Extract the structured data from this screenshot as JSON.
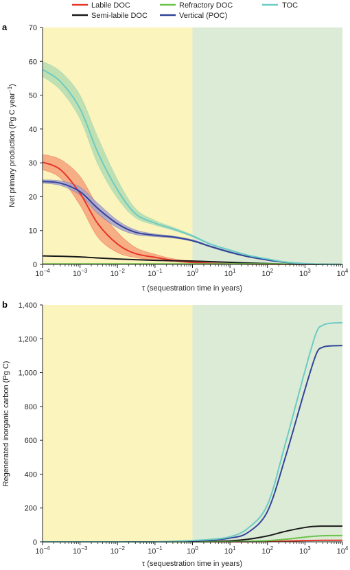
{
  "legend": {
    "items": [
      {
        "label": "Labile DOC",
        "color": "#e8352a"
      },
      {
        "label": "Semi-labile DOC",
        "color": "#1a1a1a"
      },
      {
        "label": "Refractory DOC",
        "color": "#6cc24a"
      },
      {
        "label": "Vertical (POC)",
        "color": "#33449a"
      },
      {
        "label": "TOC",
        "color": "#6ccbc4"
      }
    ]
  },
  "colors": {
    "short_region": "#fbf4bd",
    "long_region": "#dcebd6",
    "labile_band": "#f5a27a",
    "vertical_band": "#a9a3cf",
    "toc_band": "#b5dcb0"
  },
  "chart_data": [
    {
      "panel_label": "a",
      "type": "line",
      "xscale": "log",
      "xlim": [
        0.0001,
        10000
      ],
      "ylim": [
        0,
        70
      ],
      "yticks": [
        "0",
        "10",
        "20",
        "30",
        "40",
        "50",
        "60",
        "70"
      ],
      "xticks": [
        "10",
        "10",
        "10",
        "10",
        "10",
        "10",
        "10",
        "10",
        "10"
      ],
      "xtick_exponents": [
        "−4",
        "−3",
        "−2",
        "−1",
        "0",
        "1",
        "2",
        "3",
        "4"
      ],
      "xlabel": "τ (sequestration time in years)",
      "ylabel": "Net primary production (Pg C year−1)",
      "ylabel_main": "Net primary production (Pg C year",
      "ylabel_sup": "−1",
      "ylabel_end": ")",
      "grid": false,
      "shaded_regions": [
        {
          "x": [
            0.0001,
            1
          ],
          "color": "short_region"
        },
        {
          "x": [
            1,
            10000
          ],
          "color": "long_region"
        }
      ],
      "x": [
        0.0001,
        0.0003,
        0.001,
        0.003,
        0.01,
        0.03,
        0.1,
        0.3,
        1,
        3,
        10,
        30,
        100,
        300,
        1000,
        3000,
        10000
      ],
      "series": [
        {
          "name": "Labile DOC",
          "color": "#e8352a",
          "band": "labile_band",
          "values": [
            30.2,
            28,
            21,
            12,
            6,
            3.2,
            2.1,
            1.2,
            0.6,
            0.3,
            0.15,
            0.08,
            0.04,
            0.02,
            0.01,
            0,
            0
          ],
          "lower": [
            28,
            25.5,
            17.5,
            8,
            3.5,
            2,
            1.3,
            0.8,
            0.4,
            0.2,
            0.1,
            0.05,
            0.02,
            0.01,
            0,
            0,
            0
          ],
          "upper": [
            32.5,
            31,
            26,
            17,
            9.5,
            5,
            3,
            1.7,
            0.9,
            0.5,
            0.25,
            0.12,
            0.06,
            0.03,
            0.02,
            0,
            0
          ]
        },
        {
          "name": "Semi-labile DOC",
          "color": "#1a1a1a",
          "values": [
            2.5,
            2.4,
            2.2,
            1.9,
            1.6,
            1.4,
            1.2,
            1.1,
            1,
            0.8,
            0.6,
            0.4,
            0.25,
            0.1,
            0.04,
            0.01,
            0
          ]
        },
        {
          "name": "Refractory DOC",
          "color": "#6cc24a",
          "values": [
            0.15,
            0.15,
            0.15,
            0.15,
            0.15,
            0.15,
            0.15,
            0.15,
            0.15,
            0.15,
            0.15,
            0.15,
            0.15,
            0.14,
            0.1,
            0.04,
            0.01
          ]
        },
        {
          "name": "Vertical (POC)",
          "color": "#33449a",
          "band": "vertical_band",
          "values": [
            24.5,
            24,
            21.5,
            16.5,
            12,
            9.5,
            8.6,
            8.1,
            7,
            5.3,
            3.6,
            2.3,
            1.3,
            0.6,
            0.2,
            0.05,
            0.01
          ],
          "lower": [
            24,
            23.3,
            20.5,
            15,
            10.8,
            8.8,
            8.2,
            7.8,
            6.8,
            5.1,
            3.4,
            2.2,
            1.2,
            0.5,
            0.15,
            0.03,
            0
          ],
          "upper": [
            25,
            24.7,
            22.8,
            18,
            13,
            10.2,
            9,
            8.4,
            7.3,
            5.5,
            3.8,
            2.4,
            1.4,
            0.7,
            0.25,
            0.06,
            0.02
          ]
        },
        {
          "name": "TOC",
          "color": "#6ccbc4",
          "band": "toc_band",
          "values": [
            57.6,
            54,
            46,
            33,
            22,
            15,
            12.2,
            10.5,
            8.4,
            6,
            4.2,
            2.7,
            1.6,
            0.7,
            0.25,
            0.06,
            0.01
          ],
          "lower": [
            55.5,
            51.5,
            43,
            29.5,
            19.5,
            13.8,
            11.6,
            10.1,
            8.1,
            5.8,
            4,
            2.6,
            1.5,
            0.65,
            0.22,
            0.05,
            0
          ],
          "upper": [
            60,
            57,
            50,
            37.5,
            25,
            16.5,
            13,
            11,
            8.7,
            6.2,
            4.4,
            2.8,
            1.7,
            0.75,
            0.28,
            0.07,
            0.02
          ]
        }
      ]
    },
    {
      "panel_label": "b",
      "type": "line",
      "xscale": "log",
      "xlim": [
        0.0001,
        10000
      ],
      "ylim": [
        0,
        1400
      ],
      "yticks": [
        "0",
        "200",
        "400",
        "600",
        "800",
        "1,000",
        "1,200",
        "1,400"
      ],
      "xticks": [
        "10",
        "10",
        "10",
        "10",
        "10",
        "10",
        "10",
        "10",
        "10"
      ],
      "xtick_exponents": [
        "−4",
        "−3",
        "−2",
        "−1",
        "0",
        "1",
        "2",
        "3",
        "4"
      ],
      "xlabel": "τ (sequestration time in years)",
      "ylabel": "Regenerated inorganic carbon (Pg C)",
      "grid": false,
      "shaded_regions": [
        {
          "x": [
            0.0001,
            1
          ],
          "color": "short_region"
        },
        {
          "x": [
            1,
            10000
          ],
          "color": "long_region"
        }
      ],
      "x": [
        0.0001,
        0.001,
        0.01,
        0.1,
        1,
        3,
        10,
        30,
        100,
        300,
        1000,
        2000,
        3000,
        5000,
        10000
      ],
      "series": [
        {
          "name": "Labile DOC",
          "color": "#e8352a",
          "values": [
            0,
            0,
            0,
            0,
            0,
            0,
            0,
            0.5,
            1.5,
            4,
            7.5,
            8.5,
            9,
            9,
            9
          ]
        },
        {
          "name": "Semi-labile DOC",
          "color": "#1a1a1a",
          "values": [
            0,
            0,
            0,
            0,
            1,
            2.5,
            6,
            15,
            35,
            62,
            85,
            92,
            93,
            93,
            93
          ]
        },
        {
          "name": "Refractory DOC",
          "color": "#6cc24a",
          "values": [
            0,
            0,
            0,
            0,
            0.2,
            0.5,
            1.5,
            3,
            7,
            15,
            28,
            34,
            36,
            37,
            37
          ]
        },
        {
          "name": "Vertical (POC)",
          "color": "#33449a",
          "values": [
            0,
            0,
            0,
            0,
            5,
            10,
            22,
            55,
            180,
            500,
            900,
            1110,
            1150,
            1158,
            1160
          ]
        },
        {
          "name": "TOC",
          "color": "#6ccbc4",
          "values": [
            0,
            0,
            0,
            0,
            8,
            14,
            30,
            80,
            220,
            580,
            1010,
            1235,
            1280,
            1292,
            1295
          ]
        }
      ]
    }
  ]
}
